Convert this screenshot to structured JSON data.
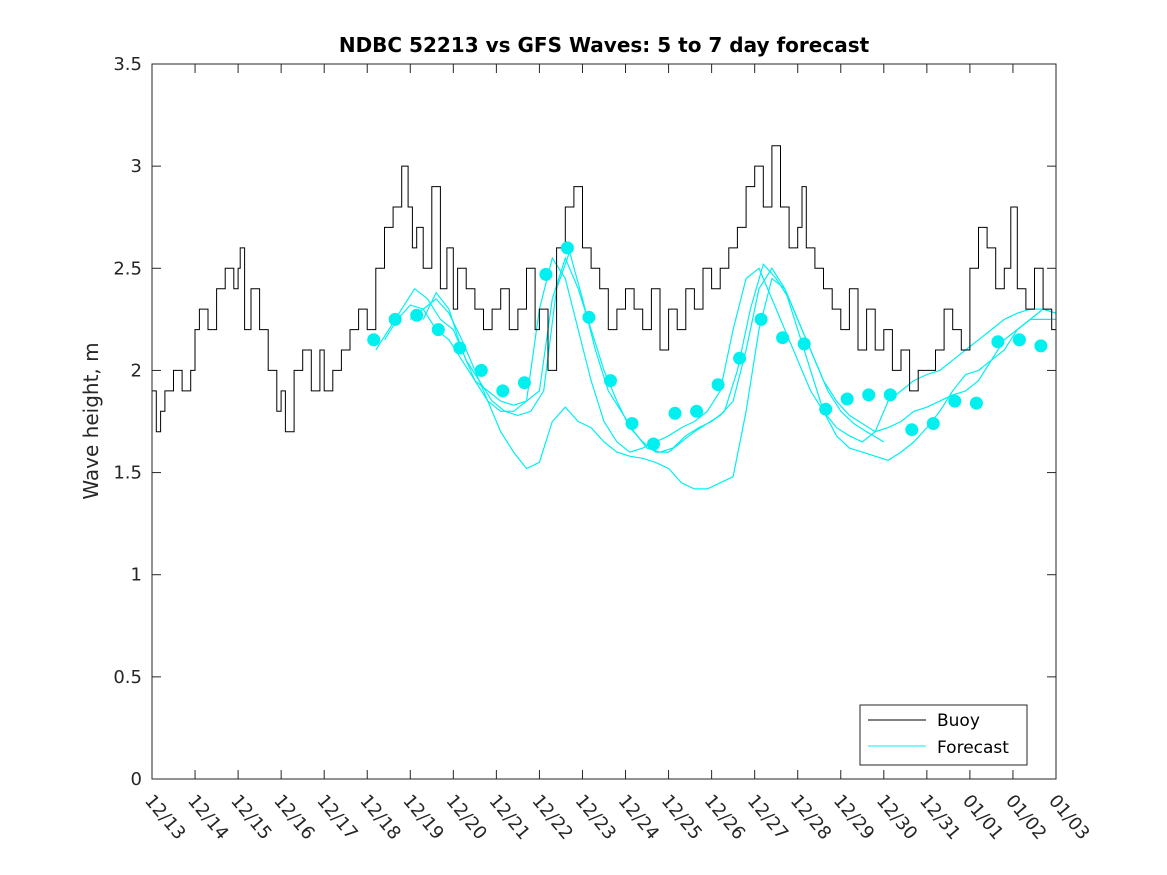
{
  "chart_data": {
    "type": "line",
    "title": "NDBC 52213 vs GFS Waves: 5 to 7 day forecast",
    "xlabel": "",
    "ylabel": "Wave height, m",
    "xlim": [
      0,
      21
    ],
    "ylim": [
      0,
      3.5
    ],
    "x_unit": "days since 12/13 00:00",
    "x_ticks": [
      0,
      1,
      2,
      3,
      4,
      5,
      6,
      7,
      8,
      9,
      10,
      11,
      12,
      13,
      14,
      15,
      16,
      17,
      18,
      19,
      20,
      21
    ],
    "x_tick_labels": [
      "12/13",
      "12/14",
      "12/15",
      "12/16",
      "12/17",
      "12/18",
      "12/19",
      "12/20",
      "12/21",
      "12/22",
      "12/23",
      "12/24",
      "12/25",
      "12/26",
      "12/27",
      "12/28",
      "12/29",
      "12/30",
      "12/31",
      "01/01",
      "01/02",
      "01/03"
    ],
    "y_ticks": [
      0,
      0.5,
      1,
      1.5,
      2,
      2.5,
      3,
      3.5
    ],
    "y_tick_labels": [
      "0",
      "0.5",
      "1",
      "1.5",
      "2",
      "2.5",
      "3",
      "3.5"
    ],
    "legend": {
      "position": "bottom-right",
      "entries": [
        {
          "label": "Buoy",
          "color": "#000000"
        },
        {
          "label": "Forecast",
          "color": "#00f0f0"
        }
      ]
    },
    "colors": {
      "buoy": "#000000",
      "forecast": "#00f0f0",
      "axes": "#262626"
    },
    "buoy": {
      "name": "Buoy",
      "x": [
        0,
        0.1,
        0.2,
        0.3,
        0.5,
        0.7,
        0.9,
        1.0,
        1.1,
        1.3,
        1.5,
        1.7,
        1.9,
        2.0,
        2.05,
        2.15,
        2.3,
        2.5,
        2.7,
        2.9,
        3.0,
        3.1,
        3.3,
        3.5,
        3.7,
        3.9,
        4.0,
        4.2,
        4.4,
        4.6,
        4.8,
        5.0,
        5.2,
        5.4,
        5.6,
        5.8,
        5.95,
        6.05,
        6.15,
        6.3,
        6.5,
        6.7,
        6.85,
        7.0,
        7.1,
        7.3,
        7.5,
        7.7,
        7.9,
        8.1,
        8.3,
        8.5,
        8.7,
        8.9,
        9.0,
        9.2,
        9.4,
        9.6,
        9.8,
        10.0,
        10.2,
        10.4,
        10.6,
        10.8,
        11.0,
        11.2,
        11.4,
        11.6,
        11.8,
        12.0,
        12.2,
        12.4,
        12.6,
        12.8,
        13.0,
        13.2,
        13.4,
        13.6,
        13.8,
        14.0,
        14.2,
        14.4,
        14.6,
        14.8,
        15.0,
        15.1,
        15.2,
        15.4,
        15.6,
        15.8,
        16.0,
        16.2,
        16.4,
        16.6,
        16.8,
        17.0,
        17.2,
        17.4,
        17.6,
        17.8,
        18.0,
        18.2,
        18.4,
        18.6,
        18.8,
        19.0,
        19.2,
        19.4,
        19.6,
        19.8,
        19.95,
        20.1,
        20.3,
        20.5,
        20.7,
        20.9,
        21.0
      ],
      "values": [
        1.9,
        1.7,
        1.8,
        1.9,
        2.0,
        1.9,
        2.0,
        2.2,
        2.3,
        2.2,
        2.4,
        2.5,
        2.4,
        2.5,
        2.6,
        2.2,
        2.4,
        2.2,
        2.0,
        1.8,
        1.9,
        1.7,
        2.0,
        2.1,
        1.9,
        2.1,
        1.9,
        2.0,
        2.1,
        2.2,
        2.3,
        2.2,
        2.5,
        2.7,
        2.8,
        3.0,
        2.8,
        2.6,
        2.7,
        2.5,
        2.9,
        2.4,
        2.6,
        2.3,
        2.5,
        2.4,
        2.3,
        2.2,
        2.3,
        2.4,
        2.2,
        2.3,
        2.5,
        2.2,
        2.3,
        2.0,
        2.6,
        2.8,
        2.9,
        2.6,
        2.5,
        2.4,
        2.2,
        2.3,
        2.4,
        2.3,
        2.2,
        2.4,
        2.1,
        2.3,
        2.2,
        2.4,
        2.3,
        2.5,
        2.4,
        2.5,
        2.6,
        2.7,
        2.9,
        3.0,
        2.8,
        3.1,
        2.8,
        2.6,
        2.7,
        2.9,
        2.6,
        2.5,
        2.4,
        2.3,
        2.2,
        2.4,
        2.1,
        2.3,
        2.1,
        2.2,
        2.0,
        2.1,
        1.9,
        2.0,
        2.0,
        2.1,
        2.3,
        2.2,
        2.1,
        2.5,
        2.7,
        2.6,
        2.4,
        2.5,
        2.8,
        2.4,
        2.3,
        2.5,
        2.3,
        2.2,
        2.3
      ]
    },
    "forecast_markers": {
      "name": "Forecast",
      "x": [
        5.15,
        5.65,
        6.15,
        6.65,
        7.15,
        7.65,
        8.15,
        8.65,
        9.15,
        9.65,
        10.15,
        10.65,
        11.15,
        11.65,
        12.15,
        12.65,
        13.15,
        13.65,
        14.15,
        14.65,
        15.15,
        15.65,
        16.15,
        16.65,
        17.15,
        17.65,
        18.15,
        18.65,
        19.15,
        19.65,
        20.15,
        20.65
      ],
      "values": [
        2.15,
        2.25,
        2.27,
        2.2,
        2.11,
        2.0,
        1.9,
        1.94,
        2.47,
        2.6,
        2.26,
        1.95,
        1.74,
        1.64,
        1.79,
        1.8,
        1.93,
        2.06,
        2.25,
        2.16,
        2.13,
        1.81,
        1.86,
        1.88,
        1.88,
        1.71,
        1.74,
        1.85,
        1.84,
        2.14,
        2.15,
        2.12
      ]
    },
    "forecast_runs": [
      {
        "x": [
          5.2,
          5.5,
          5.8,
          6.1,
          6.4,
          6.7,
          7.0,
          7.3,
          7.6,
          7.9,
          8.2,
          8.5,
          8.8,
          9.1,
          9.4,
          9.7,
          10.0,
          10.3,
          10.6,
          10.9,
          11.2,
          11.5,
          11.8,
          12.1,
          12.4,
          12.7,
          13.0,
          13.3,
          13.6,
          13.9,
          14.2,
          14.5,
          14.8,
          15.1,
          15.4,
          15.7,
          16.0,
          16.3,
          16.6,
          17.0
        ],
        "values": [
          2.1,
          2.2,
          2.3,
          2.4,
          2.35,
          2.25,
          2.2,
          2.05,
          1.95,
          1.85,
          1.8,
          1.78,
          1.8,
          1.9,
          2.4,
          2.58,
          2.35,
          2.1,
          1.9,
          1.8,
          1.7,
          1.62,
          1.6,
          1.62,
          1.68,
          1.72,
          1.75,
          1.8,
          2.0,
          2.3,
          2.52,
          2.45,
          2.35,
          2.2,
          2.05,
          1.9,
          1.8,
          1.74,
          1.7,
          1.65
        ]
      },
      {
        "x": [
          5.4,
          5.7,
          6.0,
          6.3,
          6.6,
          6.9,
          7.2,
          7.5,
          7.8,
          8.1,
          8.4,
          8.7,
          9.0,
          9.3,
          9.6,
          9.9,
          10.2,
          10.5,
          10.8,
          11.1,
          11.4,
          11.7,
          12.0,
          12.3,
          12.6,
          12.9,
          13.2,
          13.5,
          13.8,
          14.1,
          14.4,
          14.7,
          15.0,
          15.3,
          15.6,
          15.9,
          16.2,
          16.5,
          16.8,
          17.1,
          17.4,
          17.7,
          18.0,
          18.3,
          18.6,
          18.9,
          19.2,
          19.5,
          19.8,
          20.1,
          20.4,
          20.7,
          21.0
        ],
        "values": [
          2.15,
          2.25,
          2.32,
          2.3,
          2.2,
          2.15,
          2.05,
          1.95,
          1.9,
          1.85,
          1.83,
          1.85,
          1.9,
          2.35,
          2.55,
          2.4,
          2.2,
          2.0,
          1.85,
          1.72,
          1.65,
          1.6,
          1.6,
          1.65,
          1.7,
          1.74,
          1.78,
          1.85,
          2.1,
          2.4,
          2.5,
          2.4,
          2.25,
          2.1,
          1.95,
          1.85,
          1.78,
          1.74,
          1.7,
          1.72,
          1.75,
          1.8,
          1.82,
          1.85,
          1.88,
          1.9,
          1.95,
          2.05,
          2.15,
          2.2,
          2.25,
          2.25,
          2.25
        ]
      },
      {
        "x": [
          6.0,
          6.3,
          6.6,
          6.9,
          7.2,
          7.5,
          7.8,
          8.1,
          8.4,
          8.7,
          9.0,
          9.3,
          9.6,
          9.9,
          10.2,
          10.5,
          10.8,
          11.1,
          11.4,
          11.7,
          12.0,
          12.3,
          12.6,
          12.9,
          13.2,
          13.5,
          13.8,
          14.1,
          14.4,
          14.7,
          15.0,
          15.3,
          15.6,
          15.9,
          16.2,
          16.5,
          16.8,
          17.1,
          17.4,
          17.7,
          18.0,
          18.3,
          18.6,
          18.9,
          19.2,
          19.5,
          19.8,
          20.1,
          20.4,
          20.7,
          21.0
        ],
        "values": [
          2.25,
          2.3,
          2.35,
          2.28,
          2.15,
          2.0,
          1.85,
          1.7,
          1.6,
          1.52,
          1.55,
          1.75,
          1.82,
          1.75,
          1.72,
          1.65,
          1.6,
          1.58,
          1.57,
          1.55,
          1.52,
          1.45,
          1.42,
          1.42,
          1.45,
          1.48,
          1.8,
          2.2,
          2.45,
          2.4,
          2.2,
          2.0,
          1.8,
          1.68,
          1.62,
          1.6,
          1.58,
          1.56,
          1.6,
          1.65,
          1.72,
          1.8,
          1.9,
          1.98,
          2.0,
          2.05,
          2.1,
          2.2,
          2.25,
          2.3,
          2.28
        ]
      },
      {
        "x": [
          6.3,
          6.6,
          6.9,
          7.2,
          7.5,
          7.8,
          8.1,
          8.4,
          8.7,
          9.0,
          9.3,
          9.6,
          9.9,
          10.2,
          10.5,
          10.8,
          11.1,
          11.4,
          11.7,
          12.0,
          12.3,
          12.6,
          12.9,
          13.2,
          13.5,
          13.8,
          14.1,
          14.4,
          14.7,
          15.0,
          15.3,
          15.6,
          15.9,
          16.2,
          16.5,
          16.8,
          17.1,
          17.4,
          17.7,
          18.0,
          18.3,
          18.6,
          18.9,
          19.2,
          19.5,
          19.8,
          20.1,
          20.4,
          20.7,
          21.0
        ],
        "values": [
          2.25,
          2.38,
          2.3,
          2.1,
          1.95,
          1.85,
          1.8,
          1.8,
          1.85,
          2.3,
          2.55,
          2.45,
          2.2,
          1.95,
          1.75,
          1.65,
          1.6,
          1.62,
          1.65,
          1.68,
          1.72,
          1.75,
          1.8,
          1.9,
          2.2,
          2.45,
          2.5,
          2.35,
          2.2,
          2.05,
          1.9,
          1.8,
          1.72,
          1.68,
          1.65,
          1.7,
          1.85,
          1.9,
          1.95,
          1.98,
          2.0,
          2.05,
          2.1,
          2.15,
          2.2,
          2.25,
          2.28,
          2.3,
          2.3,
          2.28
        ]
      }
    ]
  }
}
